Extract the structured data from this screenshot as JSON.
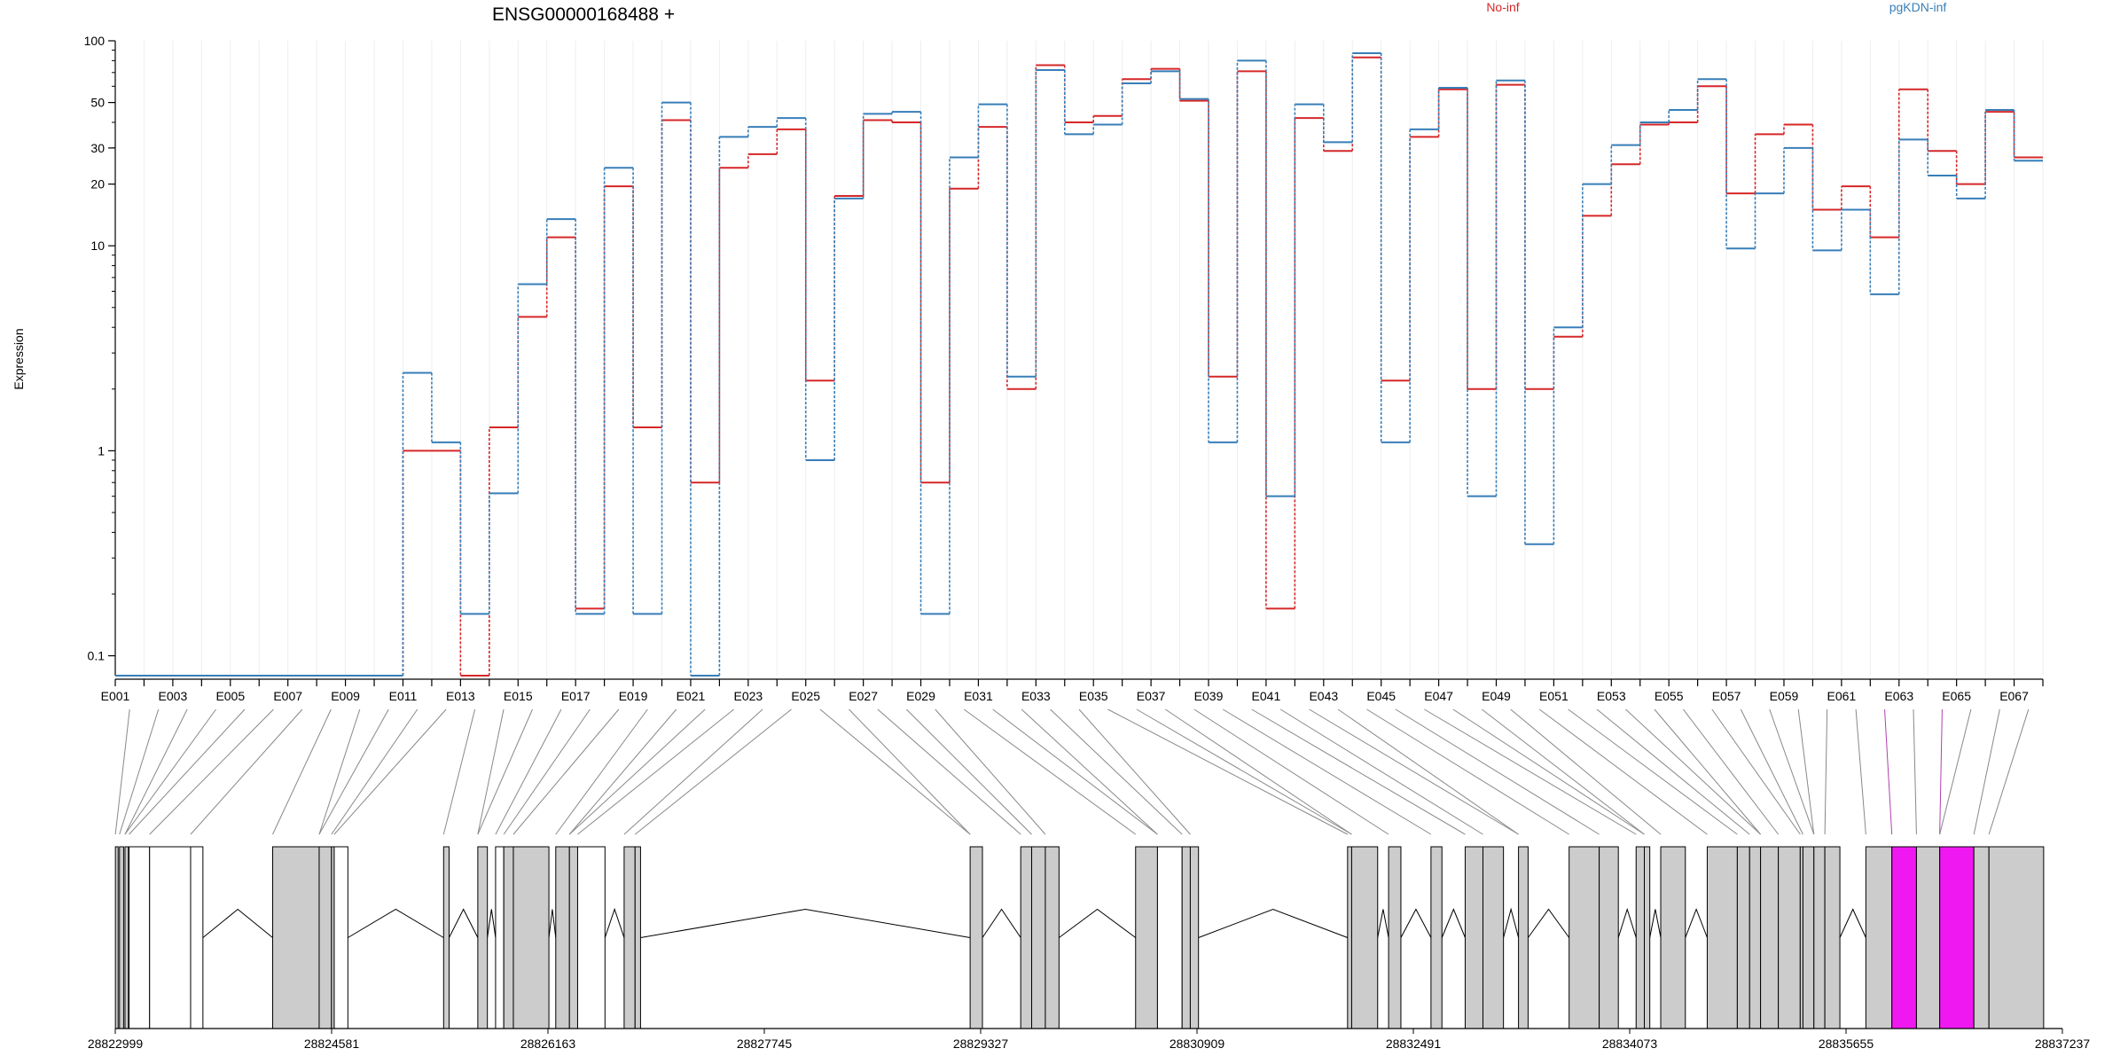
{
  "chart_data": {
    "type": "line",
    "title": "ENSG00000168488 +",
    "ylabel": "Expression",
    "yscale": "log",
    "ylim": [
      0.08,
      100
    ],
    "yticks": [
      0.1,
      1,
      10,
      20,
      30,
      50,
      100
    ],
    "ytick_labels": [
      "0.1",
      "1",
      "10",
      "20",
      "30",
      "50",
      "100"
    ],
    "grid": true,
    "legend_placement": "top-right",
    "colors": {
      "No-inf": "#d62728",
      "pgKDN-inf": "#377eb8",
      "highlight": "#f018f0",
      "exon": "#cccccc"
    },
    "categories": [
      "E001",
      "E002",
      "E003",
      "E004",
      "E005",
      "E006",
      "E007",
      "E008",
      "E009",
      "E010",
      "E011",
      "E012",
      "E013",
      "E014",
      "E015",
      "E016",
      "E017",
      "E018",
      "E019",
      "E020",
      "E021",
      "E022",
      "E023",
      "E024",
      "E025",
      "E026",
      "E027",
      "E028",
      "E029",
      "E030",
      "E031",
      "E032",
      "E033",
      "E034",
      "E035",
      "E036",
      "E037",
      "E038",
      "E039",
      "E040",
      "E041",
      "E042",
      "E043",
      "E044",
      "E045",
      "E046",
      "E047",
      "E048",
      "E049",
      "E050",
      "E051",
      "E052",
      "E053",
      "E054",
      "E055",
      "E056",
      "E057",
      "E058",
      "E059",
      "E060",
      "E061",
      "E062",
      "E063",
      "E064",
      "E065",
      "E066",
      "E067"
    ],
    "xtick_labels": [
      "E001",
      "E003",
      "E005",
      "E007",
      "E009",
      "E011",
      "E013",
      "E015",
      "E017",
      "E019",
      "E021",
      "E023",
      "E025",
      "E027",
      "E029",
      "E031",
      "E033",
      "E035",
      "E037",
      "E039",
      "E041",
      "E043",
      "E045",
      "E047",
      "E049",
      "E051",
      "E053",
      "E055",
      "E057",
      "E059",
      "E061",
      "E063",
      "E065",
      "E067"
    ],
    "series": [
      {
        "name": "No-inf",
        "values": [
          0.08,
          0.08,
          0.08,
          0.08,
          0.08,
          0.08,
          0.08,
          0.08,
          0.08,
          0.08,
          1.0,
          1.0,
          0.08,
          1.3,
          4.5,
          11.0,
          0.17,
          19.5,
          1.3,
          41,
          0.7,
          24,
          28,
          37,
          2.2,
          17.5,
          41,
          40,
          0.7,
          19,
          38,
          2.0,
          76,
          40,
          43,
          65,
          73,
          51,
          2.3,
          71,
          0.17,
          42,
          29,
          83,
          2.2,
          34,
          58,
          2.0,
          61,
          2.0,
          3.6,
          14,
          25,
          39,
          40,
          60,
          18,
          35,
          39,
          15,
          19.5,
          11,
          58,
          29,
          20,
          45,
          27
        ]
      },
      {
        "name": "pgKDN-inf",
        "values": [
          0.08,
          0.08,
          0.08,
          0.08,
          0.08,
          0.08,
          0.08,
          0.08,
          0.08,
          0.08,
          2.4,
          1.1,
          0.16,
          0.62,
          6.5,
          13.5,
          0.16,
          24,
          0.16,
          50,
          0.08,
          34,
          38,
          42,
          0.9,
          17,
          44,
          45,
          0.16,
          27,
          49,
          2.3,
          72,
          35,
          39,
          62,
          71,
          52,
          1.1,
          80,
          0.6,
          49,
          32,
          87,
          1.1,
          37,
          59,
          0.6,
          64,
          0.35,
          4.0,
          20,
          31,
          40,
          46,
          65,
          9.7,
          18,
          30,
          9.5,
          15,
          5.8,
          33,
          22,
          17,
          46,
          26
        ]
      }
    ],
    "gene_model": {
      "coord_ticks": [
        "28822999",
        "28824581",
        "28826163",
        "28827745",
        "28829327",
        "28830909",
        "28832491",
        "28834073",
        "28835655",
        "28837237"
      ],
      "exons": [
        [
          28823000,
          28823020,
          "#cccccc"
        ],
        [
          28823030,
          28823060,
          "#cccccc"
        ],
        [
          28823070,
          28823095,
          "#cccccc"
        ],
        [
          28823100,
          28823250,
          "#ffffff"
        ],
        [
          28823250,
          28823550,
          "#ffffff"
        ],
        [
          28823550,
          28823640,
          "#ffffff"
        ],
        [
          28824150,
          28824490,
          "#cccccc"
        ],
        [
          28824490,
          28824580,
          "#cccccc"
        ],
        [
          28824580,
          28824600,
          "#cccccc"
        ],
        [
          28824600,
          28824700,
          "#ffffff"
        ],
        [
          28825400,
          28825440,
          "#cccccc"
        ],
        [
          28825650,
          28825720,
          "#cccccc"
        ],
        [
          28825780,
          28825840,
          "#ffffff"
        ],
        [
          28825840,
          28825910,
          "#cccccc"
        ],
        [
          28825910,
          28826170,
          "#cccccc"
        ],
        [
          28826220,
          28826320,
          "#cccccc"
        ],
        [
          28826320,
          28826380,
          "#cccccc"
        ],
        [
          28826380,
          28826580,
          "#ffffff"
        ],
        [
          28826720,
          28826800,
          "#cccccc"
        ],
        [
          28826800,
          28826840,
          "#cccccc"
        ],
        [
          28829250,
          28829340,
          "#cccccc"
        ],
        [
          28829620,
          28829700,
          "#cccccc"
        ],
        [
          28829700,
          28829800,
          "#cccccc"
        ],
        [
          28829800,
          28829900,
          "#cccccc"
        ],
        [
          28830460,
          28830620,
          "#cccccc"
        ],
        [
          28830620,
          28830800,
          "#ffffff"
        ],
        [
          28830800,
          28830860,
          "#cccccc"
        ],
        [
          28830860,
          28830920,
          "#cccccc"
        ],
        [
          28832010,
          28832040,
          "#cccccc"
        ],
        [
          28832040,
          28832230,
          "#cccccc"
        ],
        [
          28832310,
          28832400,
          "#cccccc"
        ],
        [
          28832620,
          28832700,
          "#cccccc"
        ],
        [
          28832870,
          28833000,
          "#cccccc"
        ],
        [
          28833000,
          28833150,
          "#cccccc"
        ],
        [
          28833260,
          28833330,
          "#cccccc"
        ],
        [
          28833630,
          28833850,
          "#cccccc"
        ],
        [
          28833850,
          28833990,
          "#cccccc"
        ],
        [
          28834120,
          28834180,
          "#cccccc"
        ],
        [
          28834180,
          28834220,
          "#cccccc"
        ],
        [
          28834300,
          28834480,
          "#cccccc"
        ],
        [
          28834640,
          28834860,
          "#cccccc"
        ],
        [
          28834860,
          28834950,
          "#cccccc"
        ],
        [
          28834950,
          28835030,
          "#cccccc"
        ],
        [
          28835030,
          28835160,
          "#cccccc"
        ],
        [
          28835160,
          28835320,
          "#cccccc"
        ],
        [
          28835320,
          28835340,
          "#cccccc"
        ],
        [
          28835340,
          28835420,
          "#cccccc"
        ],
        [
          28835420,
          28835500,
          "#cccccc"
        ],
        [
          28835500,
          28835610,
          "#cccccc"
        ],
        [
          28835800,
          28835990,
          "#cccccc"
        ],
        [
          28835990,
          28836170,
          "#f018f0"
        ],
        [
          28836170,
          28836340,
          "#cccccc"
        ],
        [
          28836340,
          28836590,
          "#f018f0"
        ],
        [
          28836590,
          28836700,
          "#cccccc"
        ],
        [
          28836700,
          28837100,
          "#cccccc"
        ]
      ],
      "highlight_exons": [
        "E062",
        "E064"
      ]
    }
  },
  "legend": {
    "items": [
      "No-inf",
      "pgKDN-inf"
    ]
  }
}
